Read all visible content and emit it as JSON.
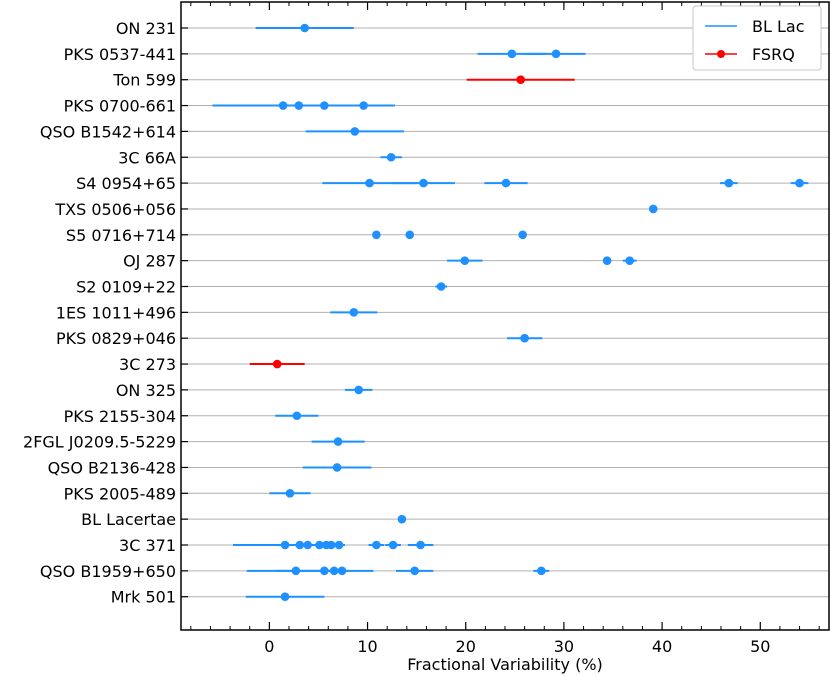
{
  "chart_data": {
    "type": "scatter",
    "title": "",
    "xlabel": "Fractional Variability (%)",
    "ylabel": "",
    "xlim": [
      -9,
      57
    ],
    "xticks": [
      0,
      10,
      20,
      30,
      40,
      50
    ],
    "grid": "horizontal",
    "legend": {
      "placement": "top-right",
      "entries": [
        {
          "name": "BL Lac",
          "color": "#1e90ff",
          "style": "line"
        },
        {
          "name": "FSRQ",
          "color": "#ff0000",
          "style": "line-marker"
        }
      ]
    },
    "sources": [
      {
        "name": "ON 231",
        "class": "BL Lac",
        "points": [
          {
            "x": 3.6,
            "err": 5.0
          }
        ]
      },
      {
        "name": "PKS 0537-441",
        "class": "BL Lac",
        "points": [
          {
            "x": 24.7,
            "err": 3.5
          },
          {
            "x": 29.2,
            "err": 3.0
          }
        ]
      },
      {
        "name": "Ton 599",
        "class": "FSRQ",
        "points": [
          {
            "x": 25.6,
            "err": 5.5
          }
        ]
      },
      {
        "name": "PKS 0700-661",
        "class": "BL Lac",
        "points": [
          {
            "x": 1.4,
            "err": 7.2
          },
          {
            "x": 3.0,
            "err": 3.0
          },
          {
            "x": 5.6,
            "err": 3.0
          },
          {
            "x": 9.6,
            "err": 3.2
          }
        ]
      },
      {
        "name": "QSO B1542+614",
        "class": "BL Lac",
        "points": [
          {
            "x": 8.7,
            "err": 5.0
          }
        ]
      },
      {
        "name": "3C 66A",
        "class": "BL Lac",
        "points": [
          {
            "x": 12.4,
            "err": 1.1
          }
        ]
      },
      {
        "name": "S4 0954+65",
        "class": "BL Lac",
        "points": [
          {
            "x": 10.2,
            "err": 4.8
          },
          {
            "x": 15.7,
            "err": 3.2
          },
          {
            "x": 24.1,
            "err": 2.2
          },
          {
            "x": 46.8,
            "err": 0.9
          },
          {
            "x": 54.0,
            "err": 0.9
          }
        ]
      },
      {
        "name": "TXS 0506+056",
        "class": "BL Lac",
        "points": [
          {
            "x": 39.1,
            "err": 0.3
          }
        ]
      },
      {
        "name": "S5 0716+714",
        "class": "BL Lac",
        "points": [
          {
            "x": 10.9,
            "err": 0.3
          },
          {
            "x": 14.3,
            "err": 0.3
          },
          {
            "x": 25.8,
            "err": 0.3
          }
        ]
      },
      {
        "name": "OJ 287",
        "class": "BL Lac",
        "points": [
          {
            "x": 19.9,
            "err": 1.8
          },
          {
            "x": 34.4,
            "err": 0.4
          },
          {
            "x": 36.7,
            "err": 0.7
          }
        ]
      },
      {
        "name": "S2 0109+22",
        "class": "BL Lac",
        "points": [
          {
            "x": 17.5,
            "err": 0.6
          }
        ]
      },
      {
        "name": "1ES 1011+496",
        "class": "BL Lac",
        "points": [
          {
            "x": 8.6,
            "err": 2.4
          }
        ]
      },
      {
        "name": "PKS 0829+046",
        "class": "BL Lac",
        "points": [
          {
            "x": 26.0,
            "err": 1.8
          }
        ]
      },
      {
        "name": "3C 273",
        "class": "FSRQ",
        "points": [
          {
            "x": 0.8,
            "err": 2.8
          }
        ]
      },
      {
        "name": "ON 325",
        "class": "BL Lac",
        "points": [
          {
            "x": 9.1,
            "err": 1.4
          }
        ]
      },
      {
        "name": "PKS 2155-304",
        "class": "BL Lac",
        "points": [
          {
            "x": 2.8,
            "err": 2.2
          }
        ]
      },
      {
        "name": "2FGL J0209.5-5229",
        "class": "BL Lac",
        "points": [
          {
            "x": 7.0,
            "err": 2.7
          }
        ]
      },
      {
        "name": "QSO B2136-428",
        "class": "BL Lac",
        "points": [
          {
            "x": 6.9,
            "err": 3.5
          }
        ]
      },
      {
        "name": "PKS 2005-489",
        "class": "BL Lac",
        "points": [
          {
            "x": 2.1,
            "err": 2.1
          }
        ]
      },
      {
        "name": "BL Lacertae",
        "class": "BL Lac",
        "points": [
          {
            "x": 13.5,
            "err": 0.3
          }
        ]
      },
      {
        "name": "3C 371",
        "class": "BL Lac",
        "points": [
          {
            "x": 1.6,
            "err": 5.3
          },
          {
            "x": 3.1,
            "err": 0.8
          },
          {
            "x": 3.9,
            "err": 0.8
          },
          {
            "x": 5.1,
            "err": 0.6
          },
          {
            "x": 5.8,
            "err": 0.6
          },
          {
            "x": 6.3,
            "err": 0.6
          },
          {
            "x": 7.1,
            "err": 0.6
          },
          {
            "x": 10.9,
            "err": 0.8
          },
          {
            "x": 12.6,
            "err": 0.8
          },
          {
            "x": 15.4,
            "err": 1.3
          }
        ]
      },
      {
        "name": "QSO B1959+650",
        "class": "BL Lac",
        "points": [
          {
            "x": 2.7,
            "err": 5.0
          },
          {
            "x": 5.6,
            "err": 5.0
          },
          {
            "x": 6.6,
            "err": 0.6
          },
          {
            "x": 7.4,
            "err": 0.6
          },
          {
            "x": 14.8,
            "err": 1.9
          },
          {
            "x": 27.7,
            "err": 0.8
          }
        ]
      },
      {
        "name": "Mrk 501",
        "class": "BL Lac",
        "points": [
          {
            "x": 1.6,
            "err": 4.0
          }
        ]
      }
    ]
  },
  "colors": {
    "bl_lac": "#1e90ff",
    "fsrq": "#ff0000",
    "grid": "#b0b0b0",
    "axis": "#000000"
  }
}
